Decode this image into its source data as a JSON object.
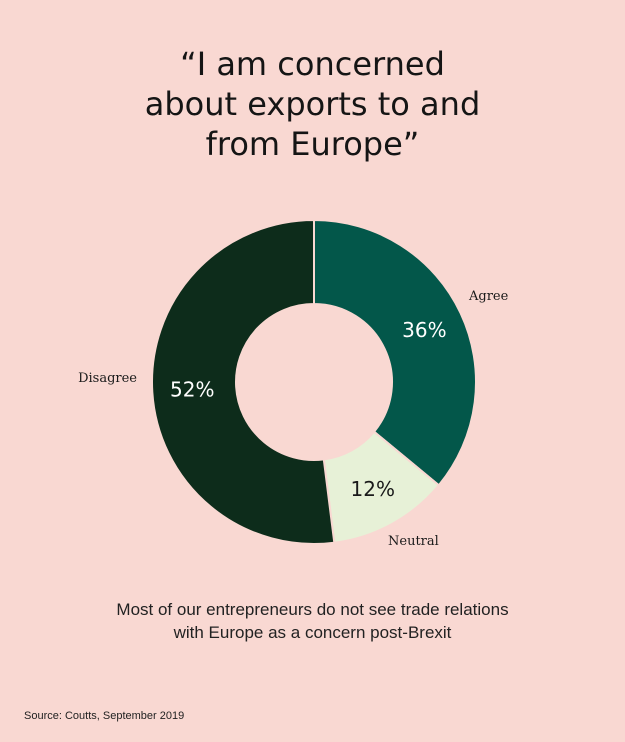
{
  "title_lines": [
    "“I am concerned",
    "about exports to and",
    "from Europe”"
  ],
  "caption_lines": [
    "Most of our entrepreneurs do not see trade relations",
    "with Europe as a concern post-Brexit"
  ],
  "source": "Source: Coutts, September 2019",
  "colors": {
    "background": "#f9d8d2",
    "agree": "#03574a",
    "neutral": "#e7f1d7",
    "disagree": "#0d2c1b",
    "separator": "#f9d8d2"
  },
  "chart_data": {
    "type": "pie",
    "variant": "donut",
    "slices": [
      {
        "label": "Agree",
        "value": 36,
        "value_label": "36%",
        "color": "#03574a",
        "text_color": "#ffffff"
      },
      {
        "label": "Neutral",
        "value": 12,
        "value_label": "12%",
        "color": "#e7f1d7",
        "text_color": "#1a1a1a"
      },
      {
        "label": "Disagree",
        "value": 52,
        "value_label": "52%",
        "color": "#0d2c1b",
        "text_color": "#ffffff"
      }
    ]
  }
}
